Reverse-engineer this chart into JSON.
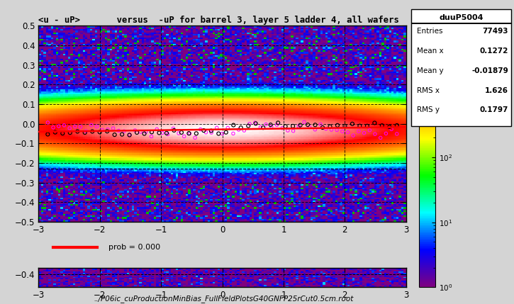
{
  "title": "<u - uP>       versus  -uP for barrel 3, layer 5 ladder 4, all wafers",
  "xlim": [
    -3,
    3
  ],
  "ylim": [
    -0.5,
    0.5
  ],
  "xticks": [
    -3,
    -2,
    -1,
    0,
    1,
    2,
    3
  ],
  "yticks": [
    -0.5,
    -0.4,
    -0.3,
    -0.2,
    -0.1,
    0.0,
    0.1,
    0.2,
    0.3,
    0.4,
    0.5
  ],
  "stats_title": "duuP5004",
  "stats": [
    [
      "Entries",
      "77493"
    ],
    [
      "Mean x",
      "0.1272"
    ],
    [
      "Mean y",
      "-0.01879"
    ],
    [
      "RMS x",
      "1.626"
    ],
    [
      "RMS y",
      "0.1797"
    ]
  ],
  "legend_label": "prob = 0.000",
  "footer": "../P06ic_cuProductionMinBias_FullFieldPlotsG40GNFP25rCut0.5cm.root",
  "seed": 42
}
